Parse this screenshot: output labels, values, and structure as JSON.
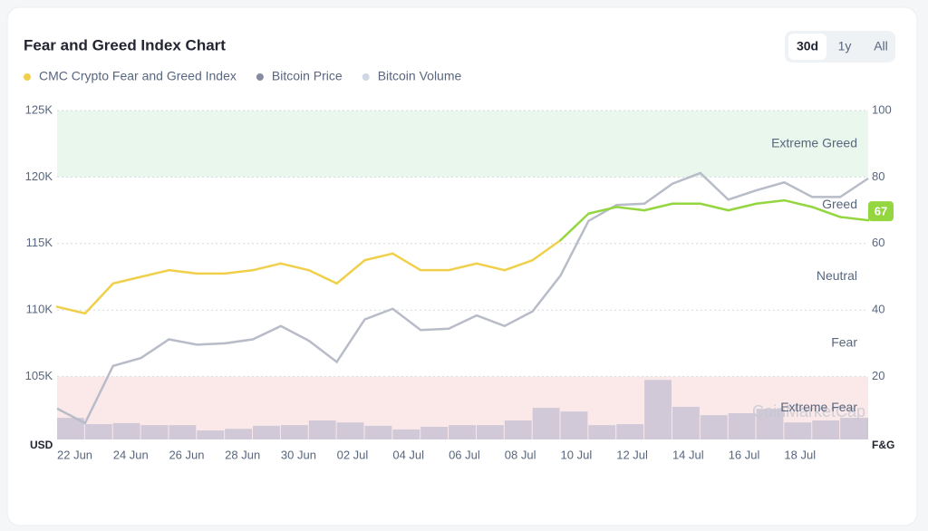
{
  "chart_data": {
    "type": "line",
    "title": "Fear and Greed Index Chart",
    "buttons": [
      {
        "label": "30d",
        "active": true
      },
      {
        "label": "1y",
        "active": false
      },
      {
        "label": "All",
        "active": false
      }
    ],
    "categories": [
      "22 Jun",
      null,
      "24 Jun",
      null,
      "26 Jun",
      null,
      "28 Jun",
      null,
      "30 Jun",
      null,
      "02 Jul",
      null,
      "04 Jul",
      null,
      "06 Jul",
      null,
      "08 Jul",
      null,
      "10 Jul",
      null,
      "12 Jul",
      null,
      "14 Jul",
      null,
      "16 Jul",
      null,
      "18 Jul",
      null,
      null,
      null
    ],
    "series": [
      {
        "name": "CMC Crypto Fear and Greed Index",
        "color": "#f0d04a",
        "axis": "y2",
        "values": [
          41,
          39,
          48,
          50,
          52,
          51,
          51,
          52,
          54,
          52,
          48,
          55,
          57,
          52,
          52,
          54,
          52,
          55,
          61,
          69,
          71,
          70,
          72,
          72,
          70,
          72,
          73,
          71,
          68,
          67
        ],
        "last_label": "67"
      },
      {
        "name": "Bitcoin Price",
        "color": "#b8bcc8",
        "values": [
          102600,
          101500,
          105800,
          106400,
          107800,
          107400,
          107500,
          107800,
          108800,
          107700,
          106100,
          109300,
          110100,
          108500,
          108600,
          109600,
          108800,
          109900,
          112600,
          116700,
          117900,
          118000,
          119500,
          120300,
          118300,
          119000,
          119600,
          118500,
          118500,
          119900
        ]
      },
      {
        "name": "Bitcoin Volume",
        "color": "#c9c3d3",
        "axis": "y2",
        "values": [
          7.6,
          5.7,
          6,
          5.4,
          5.4,
          3.8,
          4.3,
          5.2,
          5.4,
          6.8,
          6.2,
          5.2,
          4.1,
          4.9,
          5.4,
          5.4,
          6.8,
          10.6,
          9.5,
          5.4,
          5.7,
          19,
          10.9,
          8.4,
          9,
          10.3,
          6.2,
          6.8,
          7.6,
          7.6
        ]
      }
    ],
    "ylim": [
      100000,
      125000
    ],
    "yticks": [
      {
        "value": 105000,
        "label": "105K"
      },
      {
        "value": 110000,
        "label": "110K"
      },
      {
        "value": 115000,
        "label": "115K"
      },
      {
        "value": 120000,
        "label": "120K"
      },
      {
        "value": 125000,
        "label": "125K"
      }
    ],
    "y2lim": [
      0,
      100
    ],
    "y2ticks": [
      20,
      40,
      60,
      80,
      100
    ],
    "ylabel": "USD",
    "y2label": "F&G",
    "zones": [
      {
        "label": "Extreme Fear",
        "from": 0,
        "to": 20,
        "fill": "#fbe9ea",
        "line_color": "#e8913a"
      },
      {
        "label": "Fear",
        "from": 20,
        "to": 40,
        "line_color": "#e8913a"
      },
      {
        "label": "Neutral",
        "from": 40,
        "to": 60,
        "line_color": "#f0d04a"
      },
      {
        "label": "Greed",
        "from": 60,
        "to": 80,
        "line_color": "#93d63f"
      },
      {
        "label": "Extreme Greed",
        "from": 80,
        "to": 100,
        "fill": "#eaf7ec",
        "line_color": "#93d63f"
      }
    ],
    "watermark": "CoinMarketCap",
    "grid": true
  }
}
